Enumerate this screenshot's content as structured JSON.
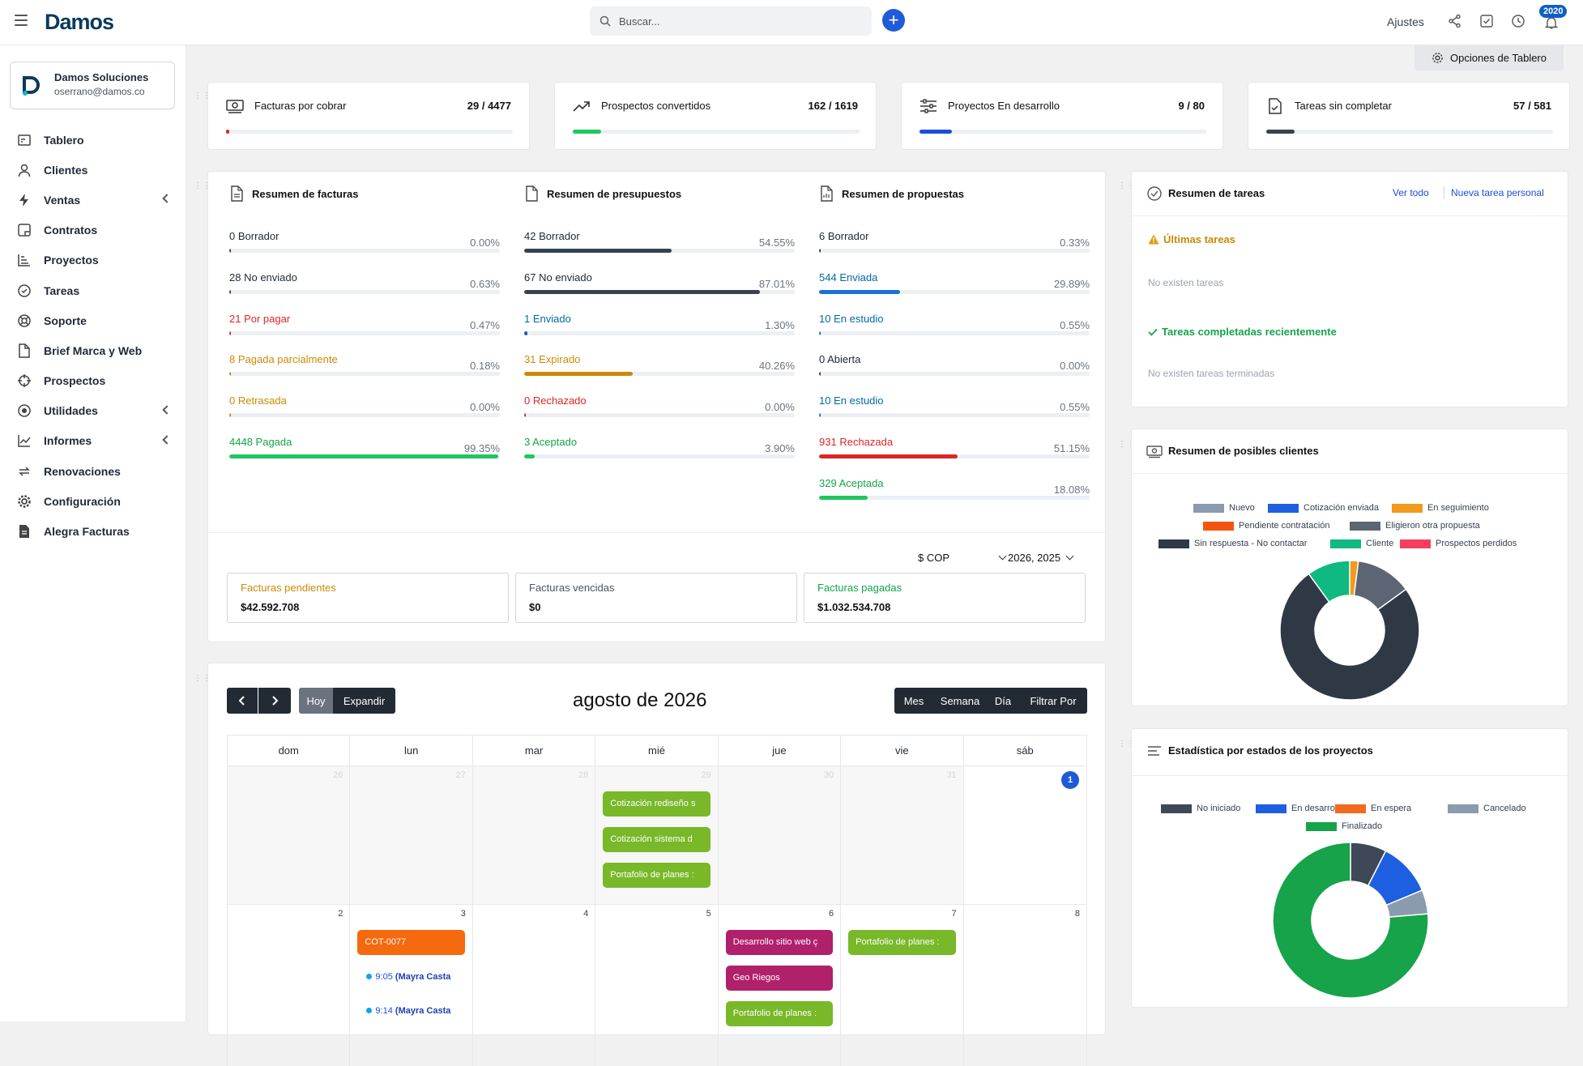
{
  "topbar": {
    "logo_text": "Damos",
    "search_placeholder": "Buscar...",
    "settings_label": "Ajustes",
    "notif_count": "2020"
  },
  "sidebar": {
    "company_name": "Damos Soluciones",
    "company_email": "oserrano@damos.co",
    "items": [
      {
        "label": "Tablero",
        "icon": "dashboard-icon",
        "chevron": false
      },
      {
        "label": "Clientes",
        "icon": "user-icon",
        "chevron": false
      },
      {
        "label": "Ventas",
        "icon": "bolt-icon",
        "chevron": true
      },
      {
        "label": "Contratos",
        "icon": "contract-icon",
        "chevron": false
      },
      {
        "label": "Proyectos",
        "icon": "projects-icon",
        "chevron": false
      },
      {
        "label": "Tareas",
        "icon": "check-circle-icon",
        "chevron": false
      },
      {
        "label": "Soporte",
        "icon": "lifebuoy-icon",
        "chevron": false
      },
      {
        "label": "Brief Marca y Web",
        "icon": "file-icon",
        "chevron": false
      },
      {
        "label": "Prospectos",
        "icon": "crosshair-icon",
        "chevron": false
      },
      {
        "label": "Utilidades",
        "icon": "target-icon",
        "chevron": true
      },
      {
        "label": "Informes",
        "icon": "chart-line-icon",
        "chevron": true
      },
      {
        "label": "Renovaciones",
        "icon": "refresh-icon",
        "chevron": false
      },
      {
        "label": "Configuración",
        "icon": "gear-icon",
        "chevron": false
      },
      {
        "label": "Alegra Facturas",
        "icon": "document-icon",
        "chevron": false
      }
    ]
  },
  "dashboard_options_label": "Opciones de Tablero",
  "kpis": [
    {
      "label": "Facturas por cobrar",
      "value": "29 / 4477",
      "fraction": 0.0065,
      "color": "#dc2626",
      "icon": "money-icon"
    },
    {
      "label": "Prospectos convertidos",
      "value": "162 / 1619",
      "fraction": 0.1,
      "color": "#22c55e",
      "icon": "trend-icon"
    },
    {
      "label": "Proyectos En desarrollo",
      "value": "9 / 80",
      "fraction": 0.1125,
      "color": "#1d4ed8",
      "icon": "sliders-icon"
    },
    {
      "label": "Tareas sin completar",
      "value": "57 / 581",
      "fraction": 0.098,
      "color": "#374151",
      "icon": "task-file-icon"
    }
  ],
  "invoices": {
    "title": "Resumen de facturas",
    "rows": [
      {
        "count": "0",
        "label": "Borrador",
        "pct": "0.00%",
        "value": 0,
        "color": "#1f2937",
        "bar": "#374151"
      },
      {
        "count": "28",
        "label": "No enviado",
        "pct": "0.63%",
        "value": 0.63,
        "color": "#1f2937",
        "bar": "#374151"
      },
      {
        "count": "21",
        "label": "Por pagar",
        "pct": "0.47%",
        "value": 0.47,
        "color": "#dc2626",
        "bar": "#dc2626"
      },
      {
        "count": "8",
        "label": "Pagada parcialmente",
        "pct": "0.18%",
        "value": 0.18,
        "color": "#ca8a04",
        "bar": "#ca8a04"
      },
      {
        "count": "0",
        "label": "Retrasada",
        "pct": "0.00%",
        "value": 0,
        "color": "#ca8a04",
        "bar": "#ca8a04"
      },
      {
        "count": "4448",
        "label": "Pagada",
        "pct": "99.35%",
        "value": 99.35,
        "color": "#16a34a",
        "bar": "#22c55e"
      }
    ]
  },
  "estimates": {
    "title": "Resumen de presupuestos",
    "rows": [
      {
        "count": "42",
        "label": "Borrador",
        "pct": "54.55%",
        "value": 54.55,
        "color": "#1f2937",
        "bar": "#374151"
      },
      {
        "count": "67",
        "label": "No enviado",
        "pct": "87.01%",
        "value": 87.01,
        "color": "#1f2937",
        "bar": "#374151"
      },
      {
        "count": "1",
        "label": "Enviado",
        "pct": "1.30%",
        "value": 1.3,
        "color": "#0369a1",
        "bar": "#1d4ed8"
      },
      {
        "count": "31",
        "label": "Expirado",
        "pct": "40.26%",
        "value": 40.26,
        "color": "#ca8a04",
        "bar": "#ca8a04"
      },
      {
        "count": "0",
        "label": "Rechazado",
        "pct": "0.00%",
        "value": 0,
        "color": "#dc2626",
        "bar": "#dc2626"
      },
      {
        "count": "3",
        "label": "Aceptado",
        "pct": "3.90%",
        "value": 3.9,
        "color": "#16a34a",
        "bar": "#22c55e"
      }
    ]
  },
  "proposals": {
    "title": "Resumen de propuestas",
    "rows": [
      {
        "count": "6",
        "label": "Borrador",
        "pct": "0.33%",
        "value": 0.33,
        "color": "#1f2937",
        "bar": "#374151"
      },
      {
        "count": "544",
        "label": "Enviada",
        "pct": "29.89%",
        "value": 29.89,
        "color": "#0369a1",
        "bar": "#1d6fd8"
      },
      {
        "count": "10",
        "label": "En estudio",
        "pct": "0.55%",
        "value": 0.55,
        "color": "#0369a1",
        "bar": "#1d6fd8"
      },
      {
        "count": "0",
        "label": "Abierta",
        "pct": "0.00%",
        "value": 0,
        "color": "#1f2937",
        "bar": "#374151"
      },
      {
        "count": "10",
        "label": "En estudio",
        "pct": "0.55%",
        "value": 0.55,
        "color": "#0369a1",
        "bar": "#1d6fd8"
      },
      {
        "count": "931",
        "label": "Rechazada",
        "pct": "51.15%",
        "value": 51.15,
        "color": "#dc2626",
        "bar": "#dc2626"
      },
      {
        "count": "329",
        "label": "Aceptada",
        "pct": "18.08%",
        "value": 18.08,
        "color": "#16a34a",
        "bar": "#22c55e"
      }
    ]
  },
  "filters": {
    "currency": "$ COP",
    "years": "2026, 2025"
  },
  "totals": [
    {
      "label": "Facturas pendientes",
      "value": "$42.592.708",
      "color": "#ca8a04"
    },
    {
      "label": "Facturas vencidas",
      "value": "$0",
      "color": "#4b5563"
    },
    {
      "label": "Facturas pagadas",
      "value": "$1.032.534.708",
      "color": "#16a34a"
    }
  ],
  "calendar": {
    "prev_label": "‹",
    "next_label": "›",
    "today_label": "Hoy",
    "expand_label": "Expandir",
    "title": "agosto de 2026",
    "views": [
      "Mes",
      "Semana",
      "Día",
      "Filtrar Por"
    ],
    "weekdays": [
      "dom",
      "lun",
      "mar",
      "mié",
      "jue",
      "vie",
      "sáb"
    ],
    "week1": [
      "26",
      "27",
      "28",
      "29",
      "30",
      "31",
      "1"
    ],
    "week2": [
      "2",
      "3",
      "4",
      "5",
      "6",
      "7",
      "8"
    ],
    "events_w1_mie": [
      "Cotización rediseño s",
      "Cotización sistema d",
      "Portafolio de planes :"
    ],
    "events_w2_lun": "COT-0077",
    "details_w2_lun": [
      {
        "time": "9:05",
        "who": "(Mayra Casta"
      },
      {
        "time": "9:14",
        "who": "(Mayra Casta"
      }
    ],
    "events_w2_jue": [
      "Desarrollo sitio web ç",
      "Geo Riegos",
      "Portafolio de planes :"
    ],
    "events_w2_vie": "Portafolio de planes :"
  },
  "tasks": {
    "title": "Resumen de tareas",
    "see_all": "Ver todo",
    "new_task": "Nueva tarea personal",
    "latest": "Últimas tareas",
    "no_tasks": "No existen tareas",
    "completed": "Tareas completadas recientemente",
    "no_completed": "No existen tareas terminadas"
  },
  "leads": {
    "title": "Resumen de posibles clientes",
    "legend": [
      {
        "name": "Nuevo",
        "color": "#8a9bb0"
      },
      {
        "name": "Cotización enviada",
        "color": "#1d5fe0"
      },
      {
        "name": "En seguimiento",
        "color": "#f39a1d"
      },
      {
        "name": "Pendiente contratación",
        "color": "#f25410"
      },
      {
        "name": "Eligieron otra propuesta",
        "color": "#5c6573"
      },
      {
        "name": "Sin respuesta - No contactar",
        "color": "#2f3845"
      },
      {
        "name": "Cliente",
        "color": "#10b981"
      },
      {
        "name": "Prospectos perdidos",
        "color": "#f43f5e"
      }
    ]
  },
  "projects_stats": {
    "title": "Estadística por estados de los proyectos",
    "legend": [
      {
        "name": "No iniciado",
        "color": "#3f4856"
      },
      {
        "name": "En desarrollo",
        "color": "#1d5fe0"
      },
      {
        "name": "En espera",
        "color": "#f26b1d"
      },
      {
        "name": "Cancelado",
        "color": "#8a9bb0"
      },
      {
        "name": "Finalizado",
        "color": "#16a34a"
      }
    ]
  },
  "chart_data": [
    {
      "type": "pie",
      "title": "Resumen de posibles clientes",
      "categories": [
        "Nuevo",
        "Cotización enviada",
        "En seguimiento",
        "Pendiente contratación",
        "Eligieron otra propuesta",
        "Sin respuesta - No contactar",
        "Cliente",
        "Prospectos perdidos"
      ],
      "values": [
        0,
        0,
        2,
        0,
        13,
        75,
        10,
        0
      ],
      "colors": [
        "#8a9bb0",
        "#1d5fe0",
        "#f39a1d",
        "#f25410",
        "#5c6573",
        "#2f3845",
        "#10b981",
        "#f43f5e"
      ]
    },
    {
      "type": "pie",
      "title": "Estadística por estados de los proyectos",
      "categories": [
        "No iniciado",
        "En desarrollo",
        "En espera",
        "Cancelado",
        "Finalizado"
      ],
      "values": [
        7.5,
        11.2,
        0,
        5,
        76.3
      ],
      "colors": [
        "#3f4856",
        "#1d5fe0",
        "#f26b1d",
        "#8a9bb0",
        "#16a34a"
      ]
    }
  ]
}
